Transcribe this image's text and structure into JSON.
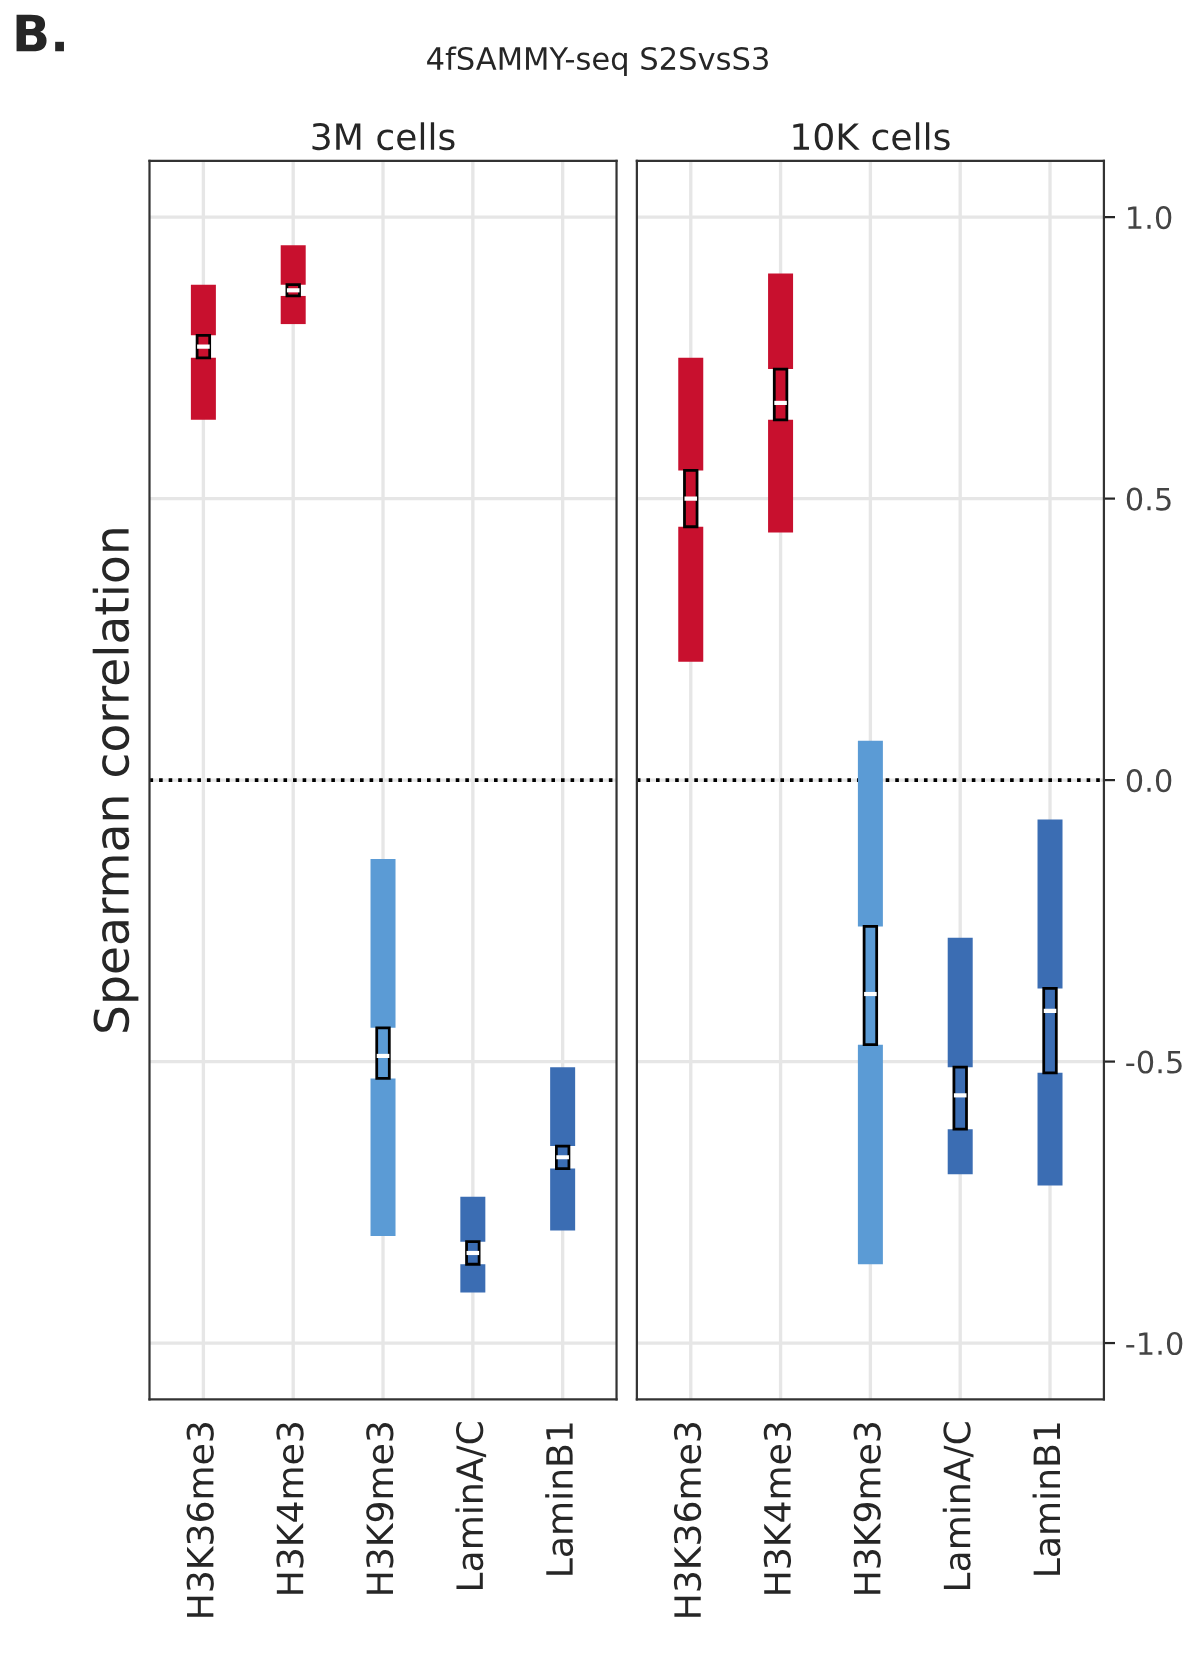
{
  "chart_data": [
    {
      "type": "box",
      "title": "3M cells",
      "ylabel": "Spearman correlation",
      "annotations": [
        "B.",
        "4fSAMMY-seq S2SvsS3"
      ],
      "categories": [
        "H3K36me3",
        "H3K4me3",
        "H3K9me3",
        "LaminA/C",
        "LaminB1"
      ],
      "colors": [
        "#c8102e",
        "#c8102e",
        "#5b9bd5",
        "#3b6db3",
        "#3b6db3"
      ],
      "boxes": [
        {
          "low": 0.64,
          "q1": 0.75,
          "median": 0.77,
          "q3": 0.79,
          "high": 0.88
        },
        {
          "low": 0.81,
          "q1": 0.86,
          "median": 0.87,
          "q3": 0.88,
          "high": 0.95
        },
        {
          "low": -0.81,
          "q1": -0.53,
          "median": -0.49,
          "q3": -0.44,
          "high": -0.14
        },
        {
          "low": -0.91,
          "q1": -0.86,
          "median": -0.84,
          "q3": -0.82,
          "high": -0.74
        },
        {
          "low": -0.8,
          "q1": -0.69,
          "median": -0.67,
          "q3": -0.65,
          "high": -0.51
        }
      ],
      "ylim": [
        -1.1,
        1.1
      ],
      "yticks": [
        -1.0,
        -0.5,
        0.0,
        0.5,
        1.0
      ],
      "ref_lines": [
        {
          "axis": "y",
          "value": 0,
          "line_style": "dotted",
          "color": "#000000"
        }
      ],
      "grid": true,
      "tick_labels": "x"
    },
    {
      "type": "box",
      "title": "10K cells",
      "categories": [
        "H3K36me3",
        "H3K4me3",
        "H3K9me3",
        "LaminA/C",
        "LaminB1"
      ],
      "colors": [
        "#c8102e",
        "#c8102e",
        "#5b9bd5",
        "#3b6db3",
        "#3b6db3"
      ],
      "boxes": [
        {
          "low": 0.21,
          "q1": 0.45,
          "median": 0.5,
          "q3": 0.55,
          "high": 0.75
        },
        {
          "low": 0.44,
          "q1": 0.64,
          "median": 0.67,
          "q3": 0.73,
          "high": 0.9
        },
        {
          "low": -0.86,
          "q1": -0.47,
          "median": -0.38,
          "q3": -0.26,
          "high": 0.07
        },
        {
          "low": -0.7,
          "q1": -0.62,
          "median": -0.56,
          "q3": -0.51,
          "high": -0.28
        },
        {
          "low": -0.72,
          "q1": -0.52,
          "median": -0.41,
          "q3": -0.37,
          "high": -0.07
        }
      ],
      "ylim": [
        -1.1,
        1.1
      ],
      "yticks": [
        {
          "value": -1.0,
          "label": "-1.0"
        },
        {
          "value": -0.5,
          "label": "-0.5"
        },
        {
          "value": 0.0,
          "label": "0.0"
        },
        {
          "value": 0.5,
          "label": "0.5"
        },
        {
          "value": 1.0,
          "label": "1.0"
        }
      ],
      "ref_lines": [
        {
          "axis": "y",
          "value": 0,
          "line_style": "dotted",
          "color": "#000000"
        }
      ],
      "grid": true
    }
  ]
}
